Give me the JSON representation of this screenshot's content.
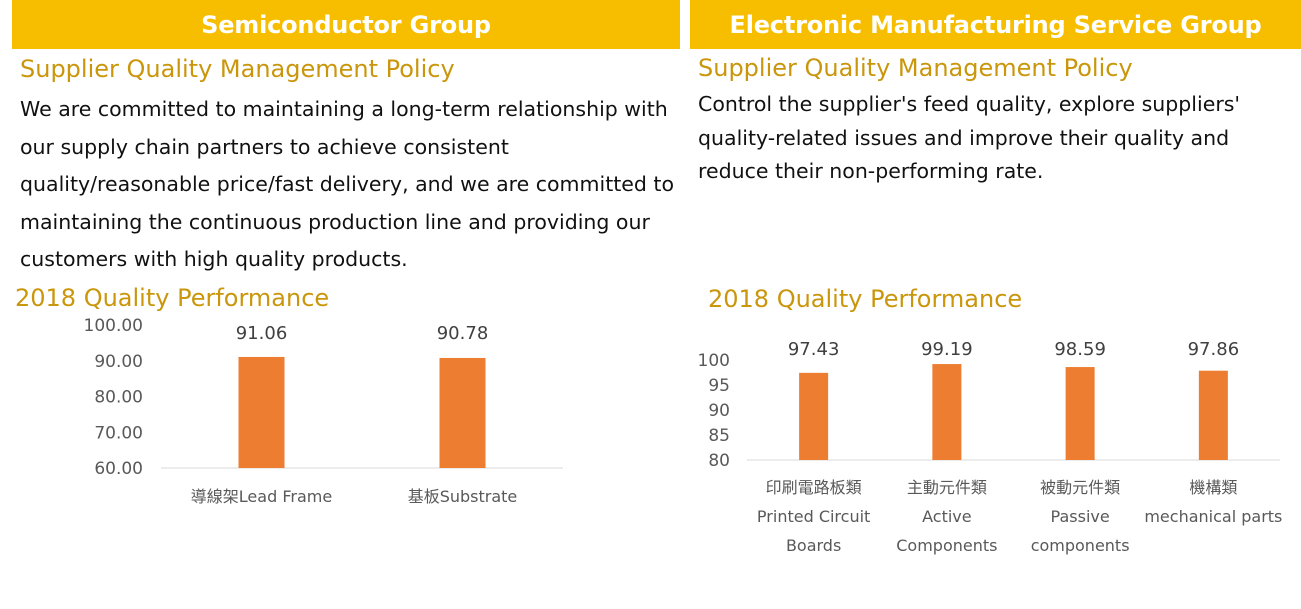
{
  "left": {
    "banner": "Semiconductor Group",
    "policy_heading": "Supplier Quality Management Policy",
    "policy_text": "We are committed to maintaining a long-term relationship with our supply chain partners to achieve consistent quality/reasonable price/fast delivery, and we are committed to maintaining the continuous production line and providing our customers with high quality products.",
    "performance_heading": "2018 Quality Performance"
  },
  "right": {
    "banner": "Electronic Manufacturing Service Group",
    "policy_heading": "Supplier Quality Management Policy",
    "policy_text": "Control the supplier's feed quality, explore suppliers' quality-related issues and improve their quality and reduce their non-performing rate.",
    "performance_heading": "2018 Quality Performance"
  },
  "colors": {
    "banner": "#F7BE00",
    "heading": "#C9960C",
    "bar": "#ED7D31",
    "axis_text": "#595959"
  },
  "chart_data": [
    {
      "type": "bar",
      "title": "2018 Quality Performance",
      "categories": [
        [
          "導線架Lead Frame"
        ],
        [
          "基板Substrate"
        ]
      ],
      "values": [
        91.06,
        90.78
      ],
      "value_labels": [
        "91.06",
        "90.78"
      ],
      "y_ticks": [
        "60.00",
        "70.00",
        "80.00",
        "90.00",
        "100.00"
      ],
      "ylim": [
        60,
        100
      ],
      "grid": false,
      "legend": "none"
    },
    {
      "type": "bar",
      "title": "2018 Quality Performance",
      "categories": [
        [
          "印刷電路板類",
          "Printed Circuit",
          "Boards"
        ],
        [
          "主動元件類",
          "Active",
          "Components"
        ],
        [
          "被動元件類",
          "Passive",
          "components"
        ],
        [
          "機構類",
          "mechanical parts"
        ]
      ],
      "values": [
        97.43,
        99.19,
        98.59,
        97.86
      ],
      "value_labels": [
        "97.43",
        "99.19",
        "98.59",
        "97.86"
      ],
      "y_ticks": [
        "80",
        "85",
        "90",
        "95",
        "100"
      ],
      "ylim": [
        80,
        100
      ],
      "grid": false,
      "legend": "none"
    }
  ]
}
